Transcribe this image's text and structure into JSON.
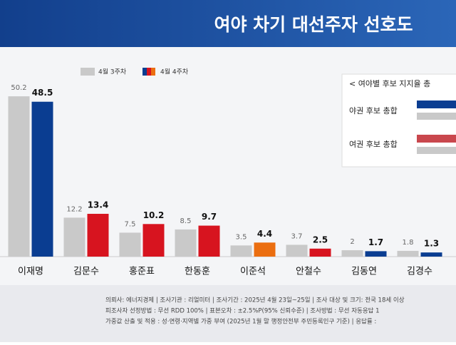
{
  "chart_data": {
    "type": "bar",
    "title": "여야 차기 대선주자 선호도",
    "categories": [
      "이재명",
      "김문수",
      "홍준표",
      "한동훈",
      "이준석",
      "안철수",
      "김동연",
      "김경수"
    ],
    "series": [
      {
        "name": "4월 3주차",
        "color": "#c9c9c9",
        "values": [
          50.2,
          12.2,
          7.5,
          8.5,
          3.5,
          3.7,
          2.0,
          1.8
        ]
      },
      {
        "name": "4월 4주차",
        "colors": [
          "#0a3d91",
          "#d7141f",
          "#d7141f",
          "#d7141f",
          "#eb6e10",
          "#d7141f",
          "#0a3d91",
          "#0a3d91"
        ],
        "values": [
          48.5,
          13.4,
          10.2,
          9.7,
          4.4,
          2.5,
          1.7,
          1.3
        ]
      }
    ],
    "inset": {
      "title": "< 여야별 후보 지지율 총",
      "rows": [
        "야권 후보 총합",
        "여권 후보 총합"
      ]
    },
    "footer": [
      "의뢰사: 에너지경제 | 조사기관 : 리얼미터 | 조사기간 : 2025년 4월 23일~25일 | 조사 대상 및 크기: 전국 18세 이상",
      "피조사자 선정방법 : 무선 RDD 100% | 표본오차 : ±2.5%P(95% 신뢰수준) | 조사방법 : 무선 자동응답 1",
      "가중값 산출 및 적용 : 성·연령·지역별 가중 부여 (2025년 1월 말 행정안전부 주민등록인구 기준) | 응답률 :"
    ]
  }
}
